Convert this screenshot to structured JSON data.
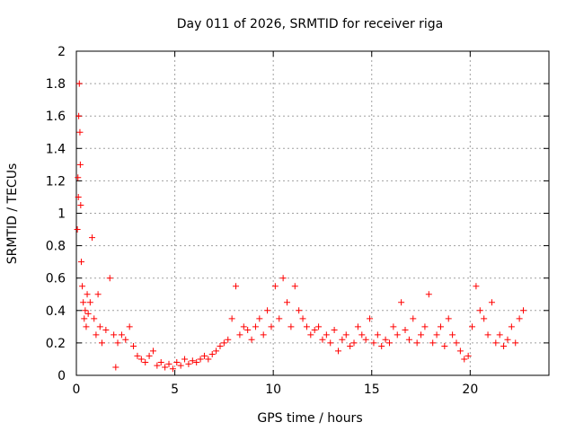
{
  "chart_data": {
    "type": "scatter",
    "title": "Day 011 of 2026, SRMTID for receiver riga",
    "xlabel": "GPS time / hours",
    "ylabel": "SRMTID / TECUs",
    "xlim": [
      0,
      24
    ],
    "ylim": [
      0,
      2
    ],
    "xticks": [
      "0",
      "5",
      "10",
      "15",
      "20"
    ],
    "yticks": [
      "0",
      "0.2",
      "0.4",
      "0.6",
      "0.8",
      "1",
      "1.2",
      "1.4",
      "1.6",
      "1.8",
      "2"
    ],
    "grid": true,
    "marker": "+",
    "color": "#ff0000",
    "series": [
      {
        "name": "SRMTID",
        "x": [
          0.05,
          0.08,
          0.1,
          0.12,
          0.15,
          0.18,
          0.2,
          0.22,
          0.25,
          0.3,
          0.35,
          0.4,
          0.45,
          0.5,
          0.55,
          0.6,
          0.7,
          0.8,
          0.9,
          1.0,
          1.1,
          1.2,
          1.3,
          1.5,
          1.7,
          1.9,
          2.0,
          2.1,
          2.3,
          2.5,
          2.7,
          2.9,
          3.1,
          3.3,
          3.5,
          3.7,
          3.9,
          4.1,
          4.3,
          4.5,
          4.7,
          4.9,
          5.1,
          5.3,
          5.5,
          5.7,
          5.9,
          6.1,
          6.3,
          6.5,
          6.7,
          6.9,
          7.1,
          7.3,
          7.5,
          7.7,
          7.9,
          8.1,
          8.3,
          8.5,
          8.7,
          8.9,
          9.1,
          9.3,
          9.5,
          9.7,
          9.9,
          10.1,
          10.3,
          10.5,
          10.7,
          10.9,
          11.1,
          11.3,
          11.5,
          11.7,
          11.9,
          12.1,
          12.3,
          12.5,
          12.7,
          12.9,
          13.1,
          13.3,
          13.5,
          13.7,
          13.9,
          14.1,
          14.3,
          14.5,
          14.7,
          14.9,
          15.1,
          15.3,
          15.5,
          15.7,
          15.9,
          16.1,
          16.3,
          16.5,
          16.7,
          16.9,
          17.1,
          17.3,
          17.5,
          17.7,
          17.9,
          18.1,
          18.3,
          18.5,
          18.7,
          18.9,
          19.1,
          19.3,
          19.5,
          19.7,
          19.9,
          20.1,
          20.3,
          20.5,
          20.7,
          20.9,
          21.1,
          21.3,
          21.5,
          21.7,
          21.9,
          22.1,
          22.3,
          22.5,
          22.7
        ],
        "y": [
          0.9,
          1.22,
          1.1,
          1.6,
          1.8,
          1.5,
          1.3,
          1.05,
          0.7,
          0.55,
          0.45,
          0.35,
          0.4,
          0.3,
          0.5,
          0.38,
          0.45,
          0.85,
          0.35,
          0.25,
          0.5,
          0.3,
          0.2,
          0.28,
          0.6,
          0.25,
          0.05,
          0.2,
          0.25,
          0.22,
          0.3,
          0.18,
          0.12,
          0.1,
          0.08,
          0.12,
          0.15,
          0.06,
          0.08,
          0.05,
          0.07,
          0.04,
          0.08,
          0.06,
          0.1,
          0.07,
          0.09,
          0.08,
          0.1,
          0.12,
          0.1,
          0.13,
          0.15,
          0.18,
          0.2,
          0.22,
          0.35,
          0.55,
          0.25,
          0.3,
          0.28,
          0.22,
          0.3,
          0.35,
          0.25,
          0.4,
          0.3,
          0.55,
          0.35,
          0.6,
          0.45,
          0.3,
          0.55,
          0.4,
          0.35,
          0.3,
          0.25,
          0.28,
          0.3,
          0.22,
          0.25,
          0.2,
          0.28,
          0.15,
          0.22,
          0.25,
          0.18,
          0.2,
          0.3,
          0.25,
          0.22,
          0.35,
          0.2,
          0.25,
          0.18,
          0.22,
          0.2,
          0.3,
          0.25,
          0.45,
          0.28,
          0.22,
          0.35,
          0.2,
          0.25,
          0.3,
          0.5,
          0.2,
          0.25,
          0.3,
          0.18,
          0.35,
          0.25,
          0.2,
          0.15,
          0.1,
          0.12,
          0.3,
          0.55,
          0.4,
          0.35,
          0.25,
          0.45,
          0.2,
          0.25,
          0.18,
          0.22,
          0.3,
          0.2,
          0.35,
          0.4
        ]
      }
    ]
  }
}
